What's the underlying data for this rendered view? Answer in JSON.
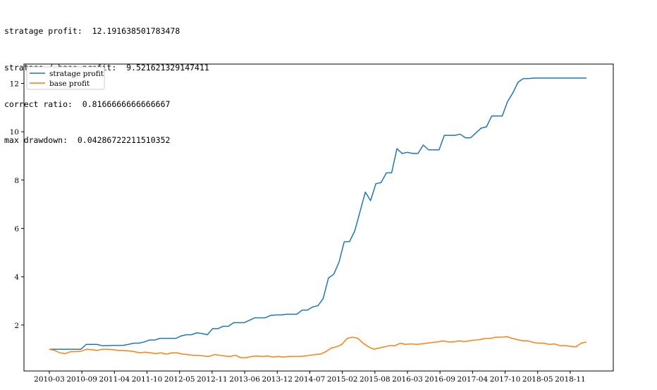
{
  "stats": [
    {
      "label": "stratage profit:",
      "value": "12.191638501783478"
    },
    {
      "label": "stratage / base profit:",
      "value": "9.521621329147411"
    },
    {
      "label": "correct ratio:",
      "value": "0.8166666666666667"
    },
    {
      "label": "max drawdown:",
      "value": "0.04286722211510352"
    }
  ],
  "chart_data": {
    "type": "line",
    "title": "",
    "xlabel": "",
    "ylabel": "",
    "x_tick_labels": [
      "2010-03",
      "2010-09",
      "2011-04",
      "2011-10",
      "2012-05",
      "2012-11",
      "2013-06",
      "2013-12",
      "2014-07",
      "2015-02",
      "2015-08",
      "2016-03",
      "2016-09",
      "2017-04",
      "2017-10",
      "2018-05",
      "2018-11"
    ],
    "y_ticks": [
      2,
      4,
      6,
      8,
      10,
      12
    ],
    "ylim": [
      0.1,
      12.8
    ],
    "legend_position": "upper-left",
    "grid": false,
    "series": [
      {
        "name": "stratage profit",
        "color": "#1f77b4",
        "values": [
          1.0,
          1.0,
          1.0,
          1.0,
          1.0,
          1.0,
          1.0,
          1.2,
          1.2,
          1.2,
          1.15,
          1.15,
          1.16,
          1.16,
          1.16,
          1.2,
          1.25,
          1.25,
          1.3,
          1.38,
          1.38,
          1.45,
          1.45,
          1.45,
          1.45,
          1.55,
          1.6,
          1.6,
          1.68,
          1.65,
          1.6,
          1.85,
          1.85,
          1.95,
          1.95,
          2.1,
          2.1,
          2.1,
          2.2,
          2.3,
          2.3,
          2.3,
          2.4,
          2.42,
          2.42,
          2.45,
          2.45,
          2.45,
          2.62,
          2.62,
          2.75,
          2.8,
          3.1,
          3.95,
          4.1,
          4.6,
          5.45,
          5.45,
          5.9,
          6.7,
          7.5,
          7.15,
          7.85,
          7.9,
          8.3,
          8.3,
          9.3,
          9.1,
          9.15,
          9.1,
          9.1,
          9.45,
          9.25,
          9.25,
          9.25,
          9.85,
          9.85,
          9.85,
          9.9,
          9.75,
          9.75,
          9.95,
          10.15,
          10.2,
          10.65,
          10.65,
          10.65,
          11.25,
          11.6,
          12.05,
          12.2,
          12.2,
          12.22,
          12.22,
          12.22,
          12.22,
          12.22,
          12.22,
          12.22,
          12.22,
          12.22,
          12.22,
          12.22
        ]
      },
      {
        "name": "base profit",
        "color": "#ff7f0e",
        "values": [
          1.0,
          0.95,
          0.85,
          0.82,
          0.9,
          0.9,
          0.92,
          1.0,
          0.98,
          0.95,
          1.0,
          1.0,
          0.98,
          0.95,
          0.95,
          0.93,
          0.9,
          0.85,
          0.88,
          0.85,
          0.82,
          0.85,
          0.8,
          0.85,
          0.85,
          0.8,
          0.78,
          0.75,
          0.75,
          0.72,
          0.7,
          0.78,
          0.75,
          0.72,
          0.7,
          0.75,
          0.65,
          0.65,
          0.7,
          0.72,
          0.7,
          0.72,
          0.68,
          0.7,
          0.68,
          0.7,
          0.7,
          0.7,
          0.72,
          0.75,
          0.78,
          0.8,
          0.9,
          1.05,
          1.1,
          1.2,
          1.45,
          1.5,
          1.45,
          1.25,
          1.1,
          1.0,
          1.05,
          1.1,
          1.15,
          1.15,
          1.25,
          1.2,
          1.22,
          1.2,
          1.22,
          1.25,
          1.28,
          1.3,
          1.35,
          1.3,
          1.3,
          1.35,
          1.32,
          1.35,
          1.38,
          1.4,
          1.45,
          1.45,
          1.5,
          1.5,
          1.52,
          1.45,
          1.4,
          1.35,
          1.35,
          1.28,
          1.25,
          1.25,
          1.2,
          1.22,
          1.15,
          1.15,
          1.12,
          1.1,
          1.25,
          1.3
        ]
      }
    ]
  }
}
